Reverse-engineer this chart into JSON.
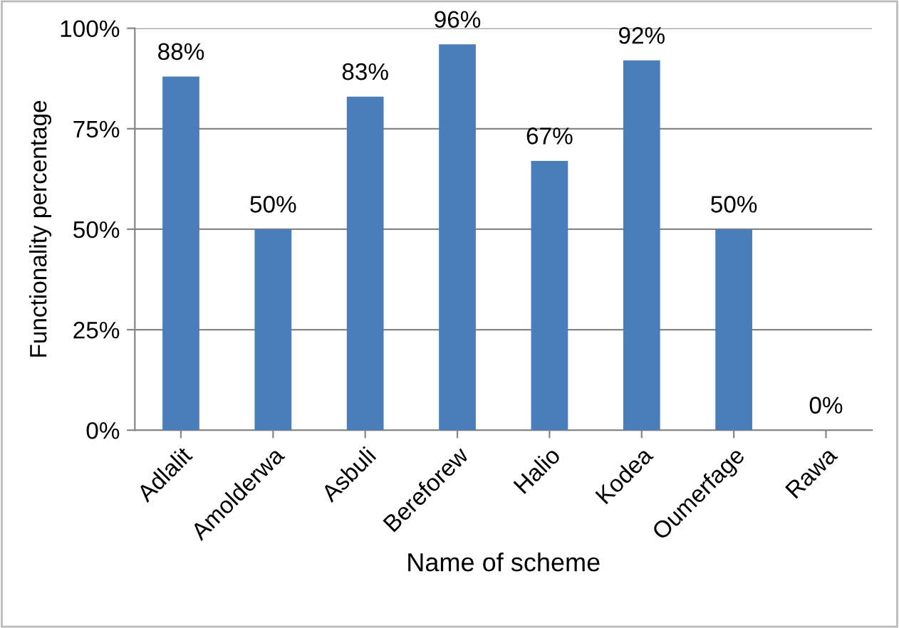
{
  "chart_data": {
    "type": "bar",
    "xlabel": "Name of scheme",
    "ylabel": "Functionality percentage",
    "categories": [
      "Adlalit",
      "Amolderwa",
      "Asbuli",
      "Bereforew",
      "Halio",
      "Kodea",
      "Oumerfage",
      "Rawa"
    ],
    "values": [
      88,
      50,
      83,
      96,
      67,
      92,
      50,
      0
    ],
    "value_labels": [
      "88%",
      "50%",
      "83%",
      "96%",
      "67%",
      "92%",
      "50%",
      "0%"
    ],
    "color": "#4a7ebb",
    "ylim": [
      0,
      100
    ],
    "yticks": [
      {
        "value": 0,
        "label": "0%"
      },
      {
        "value": 25,
        "label": "25%"
      },
      {
        "value": 50,
        "label": "50%"
      },
      {
        "value": 75,
        "label": "75%"
      },
      {
        "value": 100,
        "label": "100%"
      }
    ],
    "grid": "y",
    "legend": false
  }
}
